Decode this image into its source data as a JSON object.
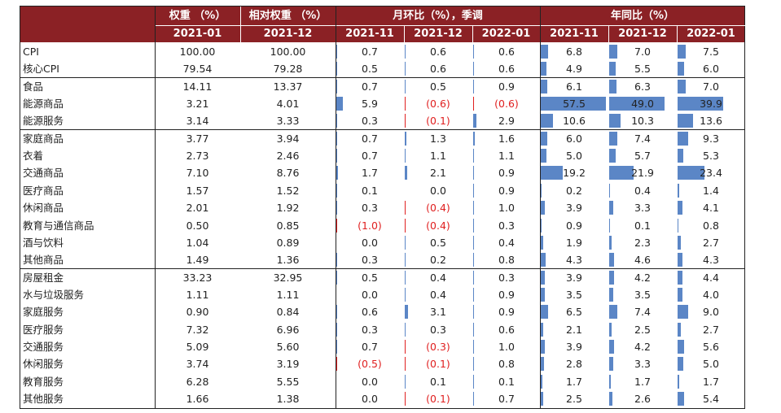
{
  "header": {
    "weight": "权重 （%）",
    "rel_weight": "相对权重 （%）",
    "mom": "月环比（%），季调",
    "yoy": "年同比（%）",
    "periods": {
      "weight": "2021-01",
      "rel_weight": "2021-12",
      "mom": [
        "2021-11",
        "2021-12",
        "2022-01"
      ],
      "yoy": [
        "2021-11",
        "2021-12",
        "2022-01"
      ]
    }
  },
  "rows": [
    {
      "name": "CPI",
      "w": "100.00",
      "rw": "100.00",
      "mom": [
        "0.7",
        "0.6",
        "0.6"
      ],
      "yoy": [
        "6.8",
        "7.0",
        "7.5"
      ],
      "momv": [
        0.7,
        0.6,
        0.6
      ],
      "yoyv": [
        6.8,
        7.0,
        7.5
      ]
    },
    {
      "name": "核心CPI",
      "w": "79.54",
      "rw": "79.28",
      "mom": [
        "0.5",
        "0.6",
        "0.6"
      ],
      "yoy": [
        "4.9",
        "5.5",
        "6.0"
      ],
      "momv": [
        0.5,
        0.6,
        0.6
      ],
      "yoyv": [
        4.9,
        5.5,
        6.0
      ]
    },
    {
      "name": "食品",
      "w": "14.11",
      "rw": "13.37",
      "mom": [
        "0.7",
        "0.5",
        "0.9"
      ],
      "yoy": [
        "6.1",
        "6.3",
        "7.0"
      ],
      "momv": [
        0.7,
        0.5,
        0.9
      ],
      "yoyv": [
        6.1,
        6.3,
        7.0
      ]
    },
    {
      "name": "能源商品",
      "w": "3.21",
      "rw": "4.01",
      "mom": [
        "5.9",
        "(0.6)",
        "(0.6)"
      ],
      "yoy": [
        "57.5",
        "49.0",
        "39.9"
      ],
      "momv": [
        5.9,
        -0.6,
        -0.6
      ],
      "yoyv": [
        57.5,
        49.0,
        39.9
      ]
    },
    {
      "name": "能源服务",
      "w": "3.14",
      "rw": "3.33",
      "mom": [
        "0.3",
        "(0.1)",
        "2.9"
      ],
      "yoy": [
        "10.6",
        "10.3",
        "13.6"
      ],
      "momv": [
        0.3,
        -0.1,
        2.9
      ],
      "yoyv": [
        10.6,
        10.3,
        13.6
      ]
    },
    {
      "name": "家庭商品",
      "w": "3.77",
      "rw": "3.94",
      "mom": [
        "0.7",
        "1.3",
        "1.6"
      ],
      "yoy": [
        "6.0",
        "7.4",
        "9.3"
      ],
      "momv": [
        0.7,
        1.3,
        1.6
      ],
      "yoyv": [
        6.0,
        7.4,
        9.3
      ]
    },
    {
      "name": "衣着",
      "w": "2.73",
      "rw": "2.46",
      "mom": [
        "0.7",
        "1.1",
        "1.1"
      ],
      "yoy": [
        "5.0",
        "5.7",
        "5.3"
      ],
      "momv": [
        0.7,
        1.1,
        1.1
      ],
      "yoyv": [
        5.0,
        5.7,
        5.3
      ]
    },
    {
      "name": "交通商品",
      "w": "7.10",
      "rw": "8.76",
      "mom": [
        "1.7",
        "2.1",
        "0.9"
      ],
      "yoy": [
        "19.2",
        "21.9",
        "23.4"
      ],
      "momv": [
        1.7,
        2.1,
        0.9
      ],
      "yoyv": [
        19.2,
        21.9,
        23.4
      ]
    },
    {
      "name": "医疗商品",
      "w": "1.57",
      "rw": "1.52",
      "mom": [
        "0.1",
        "0.0",
        "0.9"
      ],
      "yoy": [
        "0.2",
        "0.4",
        "1.4"
      ],
      "momv": [
        0.1,
        0.0,
        0.9
      ],
      "yoyv": [
        0.2,
        0.4,
        1.4
      ]
    },
    {
      "name": "休闲商品",
      "w": "2.01",
      "rw": "1.92",
      "mom": [
        "0.3",
        "(0.4)",
        "1.0"
      ],
      "yoy": [
        "3.9",
        "3.3",
        "4.1"
      ],
      "momv": [
        0.3,
        -0.4,
        1.0
      ],
      "yoyv": [
        3.9,
        3.3,
        4.1
      ]
    },
    {
      "name": "教育与通信商品",
      "w": "0.50",
      "rw": "0.85",
      "mom": [
        "(1.0)",
        "(0.4)",
        "0.3"
      ],
      "yoy": [
        "0.9",
        "0.1",
        "0.8"
      ],
      "momv": [
        -1.0,
        -0.4,
        0.3
      ],
      "yoyv": [
        0.9,
        0.1,
        0.8
      ]
    },
    {
      "name": "酒与饮料",
      "w": "1.04",
      "rw": "0.89",
      "mom": [
        "0.0",
        "0.5",
        "0.4"
      ],
      "yoy": [
        "1.9",
        "2.3",
        "2.7"
      ],
      "momv": [
        0.0,
        0.5,
        0.4
      ],
      "yoyv": [
        1.9,
        2.3,
        2.7
      ]
    },
    {
      "name": "其他商品",
      "w": "1.49",
      "rw": "1.36",
      "mom": [
        "0.3",
        "0.2",
        "0.8"
      ],
      "yoy": [
        "4.3",
        "4.6",
        "4.3"
      ],
      "momv": [
        0.3,
        0.2,
        0.8
      ],
      "yoyv": [
        4.3,
        4.6,
        4.3
      ]
    },
    {
      "name": "房屋租金",
      "w": "33.23",
      "rw": "32.95",
      "mom": [
        "0.5",
        "0.4",
        "0.3"
      ],
      "yoy": [
        "3.9",
        "4.2",
        "4.4"
      ],
      "momv": [
        0.5,
        0.4,
        0.3
      ],
      "yoyv": [
        3.9,
        4.2,
        4.4
      ]
    },
    {
      "name": "水与垃圾服务",
      "w": "1.11",
      "rw": "1.11",
      "mom": [
        "0.0",
        "0.4",
        "0.9"
      ],
      "yoy": [
        "3.5",
        "3.5",
        "4.0"
      ],
      "momv": [
        0.0,
        0.4,
        0.9
      ],
      "yoyv": [
        3.5,
        3.5,
        4.0
      ]
    },
    {
      "name": "家庭服务",
      "w": "0.90",
      "rw": "0.84",
      "mom": [
        "0.6",
        "3.1",
        "0.9"
      ],
      "yoy": [
        "6.5",
        "7.4",
        "9.0"
      ],
      "momv": [
        0.6,
        3.1,
        0.9
      ],
      "yoyv": [
        6.5,
        7.4,
        9.0
      ]
    },
    {
      "name": "医疗服务",
      "w": "7.32",
      "rw": "6.96",
      "mom": [
        "0.3",
        "0.3",
        "0.6"
      ],
      "yoy": [
        "2.1",
        "2.5",
        "2.7"
      ],
      "momv": [
        0.3,
        0.3,
        0.6
      ],
      "yoyv": [
        2.1,
        2.5,
        2.7
      ]
    },
    {
      "name": "交通服务",
      "w": "5.09",
      "rw": "5.60",
      "mom": [
        "0.7",
        "(0.3)",
        "1.0"
      ],
      "yoy": [
        "3.9",
        "4.2",
        "5.6"
      ],
      "momv": [
        0.7,
        -0.3,
        1.0
      ],
      "yoyv": [
        3.9,
        4.2,
        5.6
      ]
    },
    {
      "name": "休闲服务",
      "w": "3.74",
      "rw": "3.19",
      "mom": [
        "(0.5)",
        "(0.1)",
        "0.8"
      ],
      "yoy": [
        "2.8",
        "3.3",
        "5.0"
      ],
      "momv": [
        -0.5,
        -0.1,
        0.8
      ],
      "yoyv": [
        2.8,
        3.3,
        5.0
      ]
    },
    {
      "name": "教育服务",
      "w": "6.28",
      "rw": "5.55",
      "mom": [
        "0.0",
        "0.1",
        "0.1"
      ],
      "yoy": [
        "1.7",
        "1.7",
        "1.7"
      ],
      "momv": [
        0.0,
        0.1,
        0.1
      ],
      "yoyv": [
        1.7,
        1.7,
        1.7
      ]
    },
    {
      "name": "其他服务",
      "w": "1.66",
      "rw": "1.38",
      "mom": [
        "0.0",
        "(0.1)",
        "0.7"
      ],
      "yoy": [
        "2.5",
        "2.6",
        "5.4"
      ],
      "momv": [
        0.0,
        -0.1,
        0.7
      ],
      "yoyv": [
        2.5,
        2.6,
        5.4
      ]
    }
  ],
  "colors": {
    "header_bg": "#8b2125",
    "bar": "#5b86c6",
    "negative": "#e02020"
  }
}
